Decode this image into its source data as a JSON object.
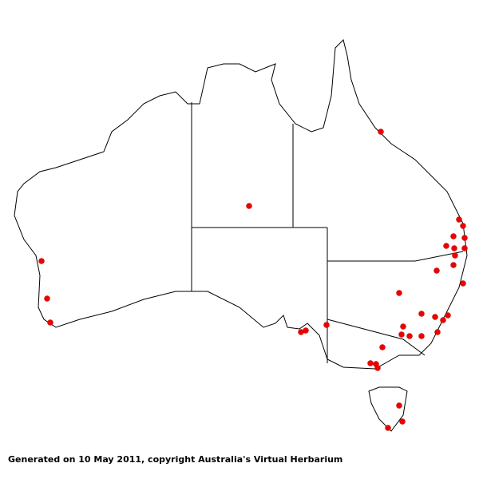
{
  "caption": "Generated on 10 May 2011, copyright Australia's Virtual Herbarium"
}
